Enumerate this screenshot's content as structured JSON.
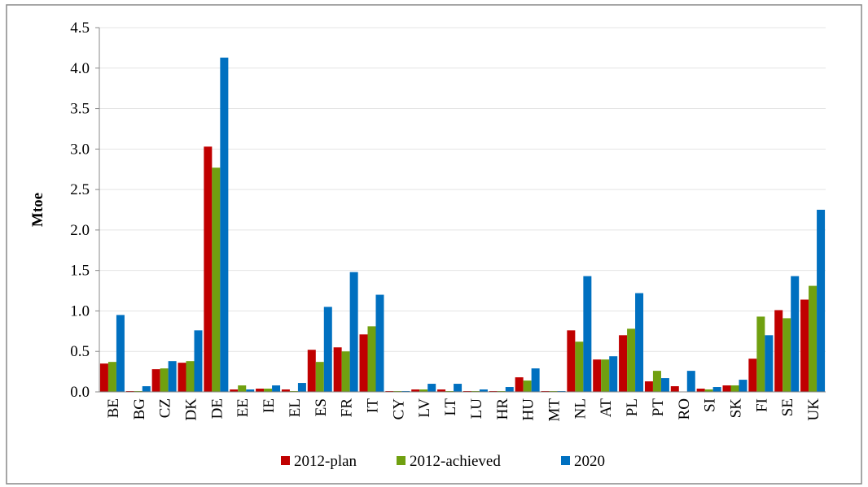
{
  "chart_data": {
    "type": "bar",
    "y_label": "Mtoe",
    "categories": [
      "BE",
      "BG",
      "CZ",
      "DK",
      "DE",
      "EE",
      "IE",
      "EL",
      "ES",
      "FR",
      "IT",
      "CY",
      "LV",
      "LT",
      "LU",
      "HR",
      "HU",
      "MT",
      "NL",
      "AT",
      "PL",
      "PT",
      "RO",
      "SI",
      "SK",
      "FI",
      "SE",
      "UK"
    ],
    "series": [
      {
        "name": "2012-plan",
        "color": "#c00000",
        "values": [
          0.35,
          0.01,
          0.28,
          0.36,
          3.03,
          0.03,
          0.04,
          0.03,
          0.52,
          0.55,
          0.71,
          0.01,
          0.03,
          0.03,
          0.01,
          0.01,
          0.18,
          0.01,
          0.76,
          0.4,
          0.7,
          0.13,
          0.07,
          0.04,
          0.08,
          0.41,
          1.01,
          1.14
        ]
      },
      {
        "name": "2012-achieved",
        "color": "#70a010",
        "values": [
          0.37,
          0.01,
          0.29,
          0.38,
          2.77,
          0.08,
          0.04,
          0.01,
          0.37,
          0.5,
          0.81,
          0.01,
          0.03,
          0.01,
          0.01,
          0.01,
          0.14,
          0.01,
          0.62,
          0.4,
          0.78,
          0.26,
          0.0,
          0.03,
          0.08,
          0.93,
          0.91,
          1.31
        ]
      },
      {
        "name": "2020",
        "color": "#0070c0",
        "values": [
          0.95,
          0.07,
          0.38,
          0.76,
          4.13,
          0.03,
          0.08,
          0.11,
          1.05,
          1.48,
          1.2,
          0.01,
          0.1,
          0.1,
          0.03,
          0.06,
          0.29,
          0.01,
          1.43,
          0.44,
          1.22,
          0.17,
          0.26,
          0.06,
          0.15,
          0.7,
          1.43,
          2.25
        ]
      }
    ],
    "ylim": [
      0,
      4.5
    ],
    "yticks": [
      {
        "value": 0,
        "label": "0.0"
      },
      0.5,
      {
        "value": 1,
        "label": "1.0"
      },
      1.5,
      {
        "value": 2,
        "label": "2.0"
      },
      2.5,
      {
        "value": 3,
        "label": "3.0"
      },
      3.5,
      {
        "value": 4,
        "label": "4.0"
      },
      4.5
    ],
    "grid": true,
    "legend": "bottom"
  }
}
